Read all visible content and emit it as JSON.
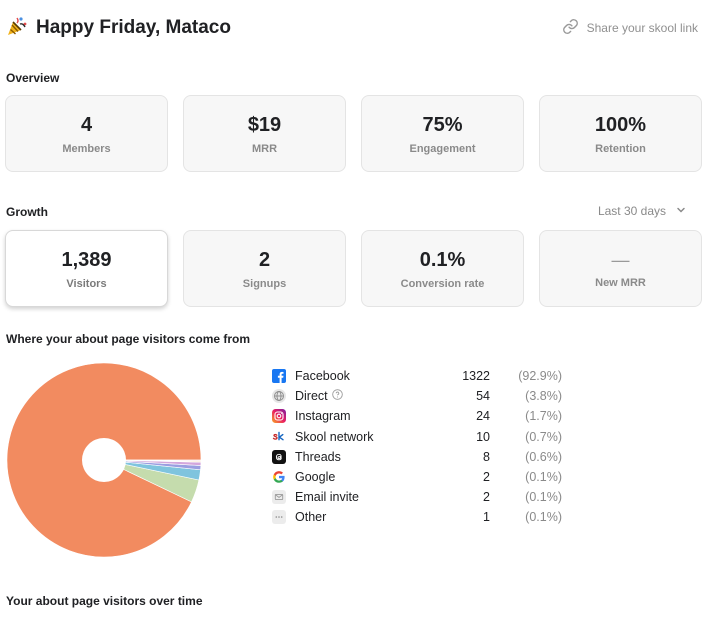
{
  "header": {
    "title": "Happy Friday, Mataco",
    "share_label": "Share your skool link"
  },
  "overview": {
    "label": "Overview",
    "cards": [
      {
        "value": "4",
        "label": "Members"
      },
      {
        "value": "$19",
        "label": "MRR"
      },
      {
        "value": "75%",
        "label": "Engagement"
      },
      {
        "value": "100%",
        "label": "Retention"
      }
    ]
  },
  "growth": {
    "label": "Growth",
    "range_label": "Last 30 days",
    "cards": [
      {
        "value": "1,389",
        "label": "Visitors"
      },
      {
        "value": "2",
        "label": "Signups"
      },
      {
        "value": "0.1%",
        "label": "Conversion rate"
      },
      {
        "value": "—",
        "label": "New MRR"
      }
    ]
  },
  "sources": {
    "title": "Where your about page visitors come from",
    "items": [
      {
        "name": "Facebook",
        "count": "1322",
        "pct": "(92.9%)",
        "value": 1322,
        "icon": "facebook-icon",
        "color": "#f28b60"
      },
      {
        "name": "Direct",
        "count": "54",
        "pct": "(3.8%)",
        "value": 54,
        "icon": "globe-icon",
        "color": "#c5dcad"
      },
      {
        "name": "Instagram",
        "count": "24",
        "pct": "(1.7%)",
        "value": 24,
        "icon": "instagram-icon",
        "color": "#7fc4de"
      },
      {
        "name": "Skool network",
        "count": "10",
        "pct": "(0.7%)",
        "value": 10,
        "icon": "skool-icon",
        "color": "#9a9ee0"
      },
      {
        "name": "Threads",
        "count": "8",
        "pct": "(0.6%)",
        "value": 8,
        "icon": "threads-icon",
        "color": "#d3a6dc"
      },
      {
        "name": "Google",
        "count": "2",
        "pct": "(0.1%)",
        "value": 2,
        "icon": "google-icon",
        "color": "#f4c06a"
      },
      {
        "name": "Email invite",
        "count": "2",
        "pct": "(0.1%)",
        "value": 2,
        "icon": "email-icon",
        "color": "#e58f8f"
      },
      {
        "name": "Other",
        "count": "1",
        "pct": "(0.1%)",
        "value": 1,
        "icon": "more-icon",
        "color": "#bdbdbd"
      }
    ]
  },
  "over_time": {
    "title": "Your about page visitors over time"
  }
}
